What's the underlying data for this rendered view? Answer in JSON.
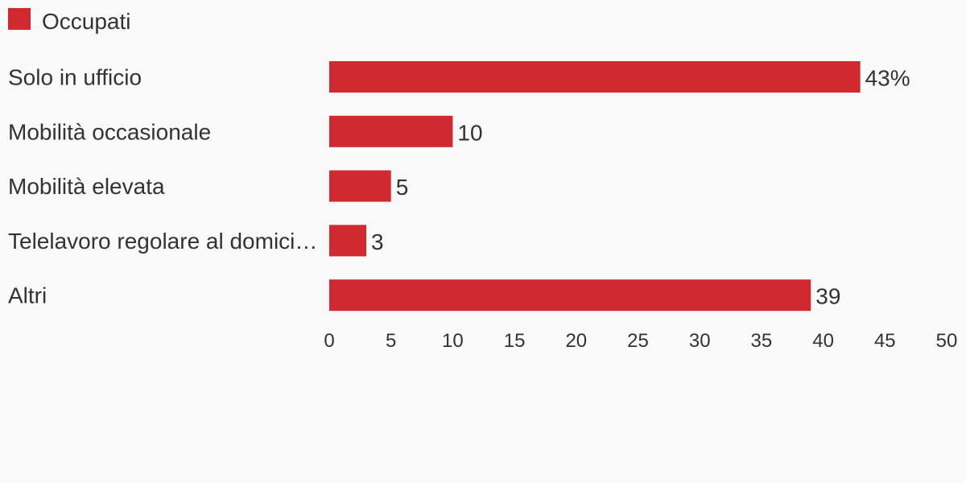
{
  "legend": {
    "label": "Occupati",
    "color": "#d0292f"
  },
  "chart_data": {
    "type": "bar",
    "orientation": "horizontal",
    "categories": [
      "Solo in ufficio",
      "Mobilità occasionale",
      "Mobilità elevata",
      "Telelavoro regolare al domici…",
      "Altri"
    ],
    "series": [
      {
        "name": "Occupati",
        "values": [
          43,
          10,
          5,
          3,
          39
        ],
        "color": "#d0292f"
      }
    ],
    "value_labels": [
      "43%",
      "10",
      "5",
      "3",
      "39"
    ],
    "xlim": [
      0,
      50
    ],
    "x_ticks": [
      0,
      5,
      10,
      15,
      20,
      25,
      30,
      35,
      40,
      45,
      50
    ],
    "x_tick_labels": [
      "0",
      "5",
      "10",
      "15",
      "20",
      "25",
      "30",
      "35",
      "40",
      "45",
      "50"
    ],
    "title": "",
    "xlabel": "",
    "ylabel": "",
    "grid": false,
    "legend_position": "top-left"
  }
}
